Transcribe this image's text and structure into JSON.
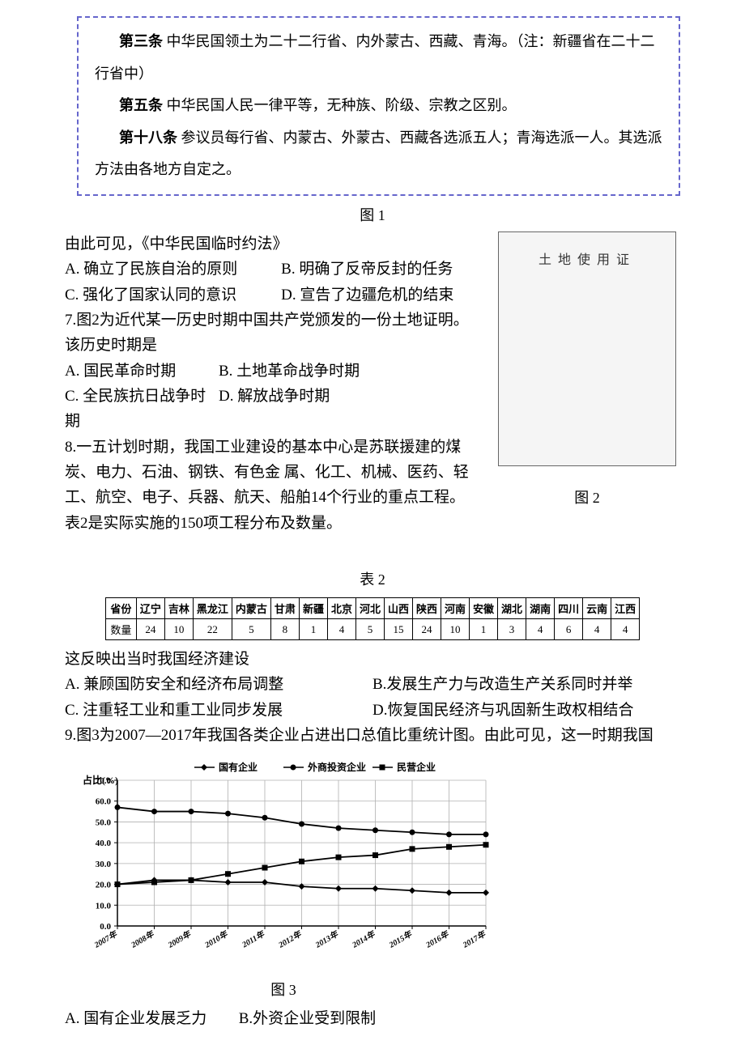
{
  "box": {
    "article3_label": "第三条",
    "article3_text": "中华民国领土为二十二行省、内外蒙古、西藏、青海。（注：新疆省在二十二行省中）",
    "article5_label": "第五条",
    "article5_text": "中华民国人民一律平等，无种族、阶级、宗教之区别。",
    "article18_label": "第十八条",
    "article18_text": "参议员每行省、内蒙古、外蒙古、西藏各选派五人；青海选派一人。其选派方法由各地方自定之。"
  },
  "fig1_caption": "图 1",
  "q6_intro": "由此可见，《中华民国临时约法》",
  "q6_optA": "A. 确立了民族自治的原则",
  "q6_optB": "B. 明确了反帝反封的任务",
  "q6_optC": "C. 强化了国家认同的意识",
  "q6_optD": "D. 宣告了边疆危机的结束",
  "q7_text": "7.图2为近代某一历史时期中国共产党颁发的一份土地证明。该历史时期是",
  "q7_optA": "A. 国民革命时期",
  "q7_optB": "B. 土地革命战争时期",
  "q7_optC": "C. 全民族抗日战争时期",
  "q7_optD": "D. 解放战争时期",
  "q8_text": "8.一五计划时期，我国工业建设的基本中心是苏联援建的煤炭、电力、石油、钢铁、有色金 属、化工、机械、医药、轻工、航空、电子、兵器、航天、船舶14个行业的重点工程。表2是实际实施的150项工程分布及数量。",
  "fig2_caption": "图 2",
  "table2_caption": "表 2",
  "table2": {
    "header_label": "省份",
    "row_label": "数量",
    "provinces": [
      "辽宁",
      "吉林",
      "黑龙江",
      "内蒙古",
      "甘肃",
      "新疆",
      "北京",
      "河北",
      "山西",
      "陕西",
      "河南",
      "安徽",
      "湖北",
      "湖南",
      "四川",
      "云南",
      "江西"
    ],
    "values": [
      24,
      10,
      22,
      5,
      8,
      1,
      4,
      5,
      15,
      24,
      10,
      1,
      3,
      4,
      6,
      4,
      4
    ]
  },
  "q8_followup": "这反映出当时我国经济建设",
  "q8_optA": "A. 兼顾国防安全和经济布局调整",
  "q8_optB": "B.发展生产力与改造生产关系同时并举",
  "q8_optC": "C. 注重轻工业和重工业同步发展",
  "q8_optD": "D.恢复国民经济与巩固新生政权相结合",
  "q9_text": "9.图3为2007—2017年我国各类企业占进出口总值比重统计图。由此可见，这一时期我国",
  "chart": {
    "y_axis_label": "占比(%)",
    "ylim": [
      0,
      70
    ],
    "ytick_step": 10,
    "yticks_labels": [
      "0.0",
      "10.0",
      "20.0",
      "30.0",
      "40.0",
      "50.0",
      "60.0",
      "70.0"
    ],
    "x_labels": [
      "2007年",
      "2008年",
      "2009年",
      "2010年",
      "2011年",
      "2012年",
      "2013年",
      "2014年",
      "2015年",
      "2016年",
      "2017年"
    ],
    "legend": [
      "国有企业",
      "外商投资企业",
      "民营企业"
    ],
    "series": {
      "state": [
        20,
        22,
        22,
        21,
        21,
        19,
        18,
        18,
        17,
        16,
        16
      ],
      "foreign": [
        57,
        55,
        55,
        54,
        52,
        49,
        47,
        46,
        45,
        44,
        44
      ],
      "private": [
        20,
        21,
        22,
        25,
        28,
        31,
        33,
        34,
        37,
        38,
        39
      ]
    },
    "colors": {
      "line": "#000000",
      "marker_state": "diamond",
      "marker_foreign": "circle",
      "marker_private": "square",
      "grid": "#b0b0b0",
      "axis": "#000000"
    },
    "font_size_axis": 11,
    "font_weight_axis": "bold"
  },
  "fig3_caption": "图 3",
  "q9_optA": "A. 国有企业发展乏力",
  "q9_optB": "B.外资企业受到限制"
}
